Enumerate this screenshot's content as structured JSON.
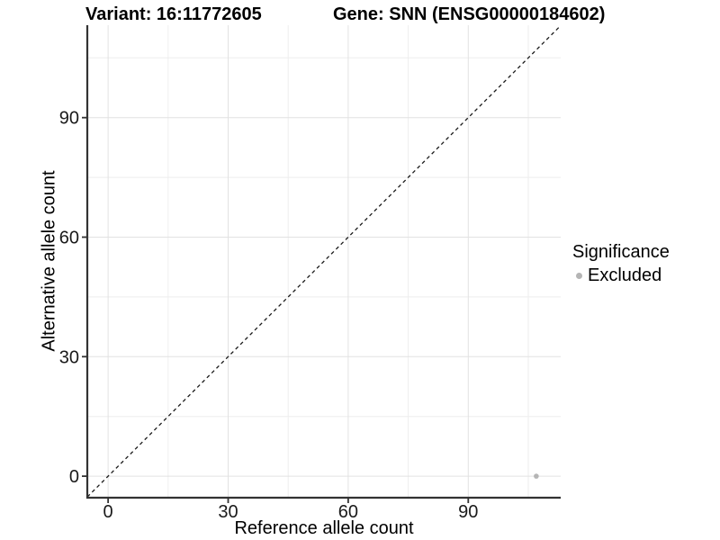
{
  "chart_data": {
    "type": "scatter",
    "title_left": "Variant: 16:11772605",
    "title_right": "Gene: SNN (ENSG00000184602)",
    "xlabel": "Reference allele count",
    "ylabel": "Alternative allele count",
    "xlim": [
      -5.2,
      113.1
    ],
    "ylim": [
      -5.4,
      113.2
    ],
    "x_ticks": [
      0,
      30,
      60,
      90
    ],
    "y_ticks": [
      0,
      30,
      60,
      90
    ],
    "x_minor_ticks": [
      15,
      45,
      75,
      105
    ],
    "y_minor_ticks": [
      15,
      45,
      75,
      105
    ],
    "grid": "major and minor, light gray on white",
    "identity_line": {
      "slope": 1,
      "intercept": 0,
      "style": "dashed",
      "color": "#1a1a1a"
    },
    "series": [
      {
        "name": "Excluded",
        "color": "#b5b5b5",
        "points": [
          {
            "x": 107,
            "y": 0
          }
        ]
      }
    ],
    "legend": {
      "title": "Significance",
      "position": "right",
      "items": [
        {
          "label": "Excluded",
          "color": "#b5b5b5"
        }
      ]
    },
    "theme": {
      "background": "#ffffff",
      "grid_major": "#e2e2e2",
      "grid_minor": "#eeeeee",
      "axis_line": "#333333",
      "tick_text": "#1a1a1a",
      "point_color": "#b5b5b5"
    }
  }
}
